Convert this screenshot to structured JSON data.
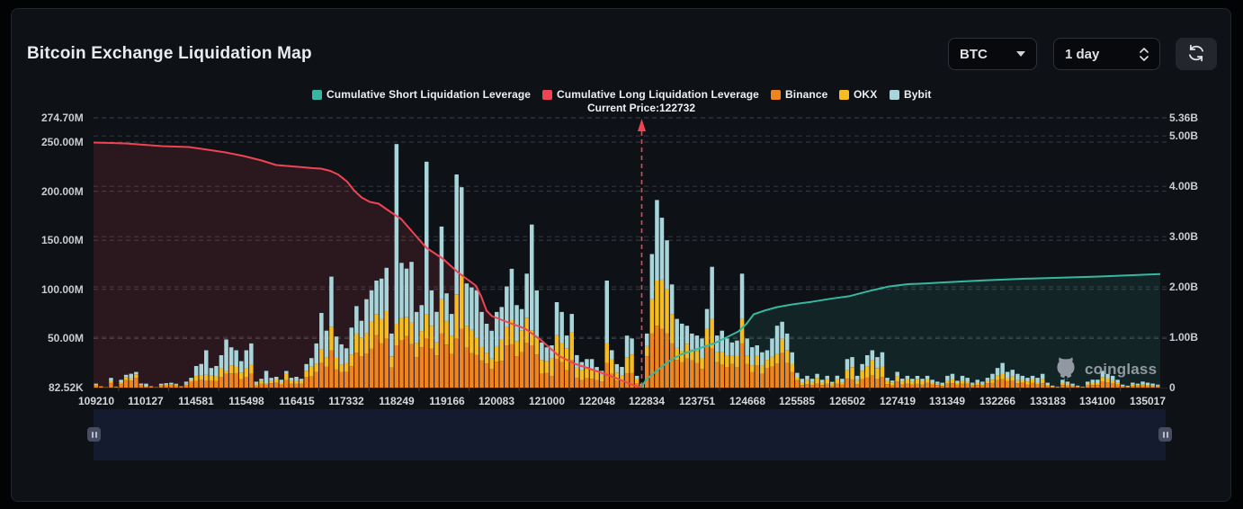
{
  "page": {
    "title": "Bitcoin Exchange Liquidation Map"
  },
  "controls": {
    "symbol_select": {
      "value": "BTC"
    },
    "interval_select": {
      "value": "1 day"
    },
    "refresh_button": "refresh"
  },
  "legend": {
    "items": [
      {
        "label": "Cumulative Short Liquidation Leverage",
        "color": "#35b8a0",
        "type": "line"
      },
      {
        "label": "Cumulative Long Liquidation Leverage",
        "color": "#ef4454",
        "type": "line"
      },
      {
        "label": "Binance",
        "color": "#f0841f",
        "type": "bar"
      },
      {
        "label": "OKX",
        "color": "#f5bd22",
        "type": "bar"
      },
      {
        "label": "Bybit",
        "color": "#a8d5da",
        "type": "bar"
      }
    ]
  },
  "current_price": {
    "label": "Current Price:122732",
    "value": 122732,
    "x_frac": 0.5139,
    "line_color": "#ef4454"
  },
  "watermark": {
    "text": "coinglass"
  },
  "chart_data": {
    "type": "bar",
    "note": "stacked liquidation bars (left axis, M USD) + cumulative leverage lines (right axis, B USD)",
    "x_tick_labels": [
      "109210",
      "110127",
      "114581",
      "115498",
      "116415",
      "117332",
      "118249",
      "119166",
      "120083",
      "121000",
      "122048",
      "122834",
      "123751",
      "124668",
      "125585",
      "126502",
      "127419",
      "131349",
      "132266",
      "133183",
      "134100",
      "135017"
    ],
    "bars_per_tick": 10,
    "bar_count": 213,
    "series": [
      {
        "name": "Binance",
        "color": "#f0841f",
        "values": [
          2.2,
          0.9,
          0.3,
          5.0,
          0.5,
          4.1,
          7.6,
          7.3,
          10.0,
          2.5,
          0.6,
          1.0,
          0.3,
          1.9,
          2.3,
          2.4,
          2.3,
          0.8,
          2.8,
          5.9,
          6.8,
          7.8,
          7,
          7.3,
          6.6,
          11.0,
          14,
          14.6,
          14.7,
          8.6,
          11.0,
          14,
          2.0,
          3.9,
          3,
          4.5,
          4.7,
          3.3,
          7.6,
          4.0,
          3.7,
          3.8,
          10.7,
          11.5,
          15.7,
          25,
          21.4,
          38,
          18.4,
          16.0,
          16.1,
          21.8,
          35.5,
          31.8,
          34.8,
          39.5,
          53.3,
          45,
          50,
          20.4,
          43,
          48.2,
          52.5,
          44.2,
          30.8,
          41.0,
          50,
          39.8,
          32.8,
          55,
          43.9,
          34.0,
          50,
          60,
          40.8,
          35.0,
          33.4,
          27.6,
          24.5,
          19.0,
          26.4,
          27.2,
          42.9,
          44.1,
          32.0,
          36.0,
          45.8,
          43,
          33.7,
          14.3,
          15.1,
          11.8,
          29.0,
          25.8,
          17.7,
          28.0,
          10.0,
          7.6,
          9.7,
          9.0,
          7.7,
          6.3,
          25,
          14.0,
          7.1,
          6.6,
          14.5,
          15.1,
          4.6,
          1.5,
          32.0,
          55,
          63,
          60,
          55,
          45,
          28.3,
          26.1,
          29.6,
          27.8,
          25.2,
          19.1,
          41.3,
          40,
          26.0,
          23.1,
          21.1,
          24.2,
          20.8,
          45,
          24.3,
          16.0,
          22.2,
          14.1,
          20.1,
          21.3,
          24.6,
          35.3,
          25.0,
          15.8,
          7.5,
          2.7,
          3.6,
          2.7,
          4.0,
          2.5,
          4.1,
          1.9,
          4.0,
          3.0,
          9.4,
          8.4,
          3.5,
          8.6,
          10.2,
          12.8,
          8.8,
          10.8,
          3.6,
          2.4,
          6.1,
          3.1,
          4.0,
          2.9,
          3.9,
          3.2,
          4.6,
          3.1,
          2.6,
          1.6,
          3.9,
          4.5,
          2.9,
          4.0,
          4.0,
          2.2,
          2.7,
          2.2,
          4.5,
          4.7,
          7.6,
          8.5,
          6.6,
          7.0,
          4.4,
          4.8,
          3.2,
          5.0,
          3.3,
          4.4,
          1.7,
          0.7,
          0.4,
          2.7,
          2.3,
          1.3,
          0.8,
          0.3,
          2.4,
          2.6,
          2.6,
          6.4,
          5.4,
          4.2,
          3.1,
          1.0,
          0.6,
          1.8,
          1.7,
          2.3,
          1.8,
          1.4,
          1.2
        ]
      },
      {
        "name": "OKX",
        "color": "#f5bd22",
        "values": [
          0.6,
          0.2,
          0.1,
          1.8,
          0.2,
          1.1,
          2.7,
          2.2,
          3.5,
          0.7,
          0.4,
          0.2,
          0.1,
          0.6,
          1.0,
          1.0,
          0.7,
          0.2,
          1.0,
          1.9,
          5.0,
          4.8,
          6,
          4.8,
          5.0,
          8.6,
          3,
          8.1,
          6.8,
          6.7,
          8.3,
          9,
          2.0,
          2.8,
          1,
          2.7,
          3.5,
          2.3,
          6.2,
          3.2,
          3.6,
          3.4,
          6.4,
          9.8,
          8.8,
          14,
          9.4,
          24,
          11.8,
          7.7,
          9.5,
          11.9,
          19.8,
          19.3,
          20.7,
          28.3,
          21.6,
          25,
          28,
          11.4,
          22,
          22.7,
          19.2,
          22.1,
          14.3,
          16.6,
          25,
          23.1,
          13.2,
          35,
          24.1,
          19.0,
          45,
          55,
          22.1,
          23.9,
          17.1,
          14.1,
          11.1,
          10.5,
          15.8,
          21.4,
          18.7,
          24.6,
          15.0,
          21.9,
          25.3,
          15,
          17.4,
          13.8,
          11.6,
          17.9,
          24.4,
          20.0,
          22.3,
          28.0,
          10.5,
          10.0,
          11.2,
          8.5,
          8.9,
          6.7,
          20,
          14.5,
          8.2,
          5.5,
          16.0,
          18.6,
          4.0,
          1.7,
          10.3,
          35,
          46,
          50,
          45,
          30,
          12.1,
          11.1,
          15.1,
          10.9,
          12.2,
          10.8,
          18.3,
          30,
          10.5,
          13.3,
          11.5,
          8.7,
          11.7,
          25,
          8.4,
          6.8,
          9.9,
          8.4,
          8.2,
          10.2,
          9.5,
          14.4,
          13.4,
          8.5,
          2.6,
          2.8,
          4.4,
          3.0,
          5.9,
          2.7,
          5.0,
          2.5,
          4.3,
          2.4,
          8.5,
          12.5,
          4.1,
          8.6,
          11.7,
          15.2,
          11.2,
          11.2,
          3.5,
          2.8,
          5.4,
          3.2,
          4.6,
          3.2,
          5.1,
          3.7,
          3.7,
          2.4,
          1.2,
          1.2,
          2.6,
          3.8,
          2.1,
          3.3,
          2.1,
          1.5,
          2.5,
          1.5,
          2.9,
          3.4,
          4.6,
          5.7,
          3.0,
          4.4,
          3.2,
          3.0,
          3.1,
          3.7,
          2.2,
          4.0,
          1.0,
          0.6,
          0.2,
          2.4,
          1.7,
          0.8,
          0.5,
          0.3,
          1.7,
          2.4,
          2.4,
          3.9,
          4.2,
          2.4,
          1.7,
          0.6,
          0.4,
          1.1,
          0.9,
          1.3,
          0.9,
          0.8,
          0.8
        ]
      },
      {
        "name": "Bybit",
        "color": "#a8d5da",
        "values": [
          1.2,
          0.3,
          0.1,
          3.1,
          0.3,
          2.8,
          2.7,
          4.6,
          2.4,
          0.9,
          3.0,
          0.3,
          0.1,
          1.4,
          1.2,
          1.5,
          0.9,
          0.4,
          2.2,
          2.2,
          10.2,
          11.5,
          25,
          7.9,
          10.4,
          13.4,
          32,
          18.3,
          16.5,
          11.6,
          18.7,
          22,
          2.0,
          2.3,
          13,
          2.7,
          2.8,
          2.4,
          3.1,
          2.8,
          3.7,
          1.8,
          6.9,
          8.7,
          20.5,
          37,
          27.2,
          51,
          21.8,
          20.3,
          14.4,
          27.4,
          27.7,
          16.9,
          34.5,
          31.2,
          34.1,
          41,
          44,
          23.2,
          183,
          56.1,
          49.4,
          61.7,
          31.9,
          26.4,
          155,
          36.1,
          31.1,
          74,
          28.0,
          22.0,
          122,
          89,
          43.1,
          43.1,
          48.6,
          35.3,
          29.4,
          28.4,
          34.8,
          33.4,
          41.4,
          52.3,
          37.0,
          22.0,
          44.9,
          108,
          47.9,
          17.9,
          14.3,
          13.3,
          33.6,
          31.2,
          13.0,
          19.0,
          12.6,
          8.4,
          8.1,
          11.5,
          4.4,
          4.0,
          64,
          9.6,
          8.6,
          9.0,
          22.4,
          16.3,
          3.4,
          0.8,
          12.7,
          46,
          82,
          63,
          50,
          30,
          29.6,
          27.9,
          18.3,
          16.3,
          15.6,
          20.1,
          20.4,
          53,
          16.5,
          21.6,
          17.4,
          13.1,
          15.4,
          46,
          17.3,
          18.3,
          10.9,
          13.5,
          9.7,
          18.5,
          28.9,
          17.3,
          16.6,
          11.6,
          4.9,
          3.5,
          4.0,
          3.3,
          4.1,
          2.8,
          2.9,
          1.5,
          3.8,
          3.6,
          11.1,
          10.1,
          4.4,
          6.8,
          11.1,
          10.0,
          11.0,
          14.0,
          2.9,
          1.9,
          4.5,
          2.8,
          3.4,
          2.9,
          2.9,
          2.1,
          3.7,
          2.5,
          2.2,
          2.1,
          5.5,
          5.7,
          2.0,
          4.7,
          3.9,
          1.3,
          2.8,
          2.3,
          2.6,
          5.9,
          7.8,
          10.9,
          6.4,
          6.7,
          6.4,
          4.2,
          3.7,
          3.3,
          4.5,
          5.6,
          2.2,
          0.7,
          0.4,
          2.9,
          2.0,
          1.9,
          0.7,
          0.4,
          1.9,
          3.1,
          3.1,
          6.7,
          4.3,
          5.4,
          3.2,
          1.4,
          0.9,
          2.1,
          1.4,
          2.5,
          2.3,
          1.9,
          1.0
        ]
      }
    ],
    "lines": [
      {
        "name": "Cumulative Long Liquidation Leverage",
        "color": "#ef4454",
        "fill": "rgba(239,68,84,0.13)",
        "axis": "right",
        "points": [
          [
            0.0,
            4.869
          ],
          [
            0.0304,
            4.851
          ],
          [
            0.0641,
            4.797
          ],
          [
            0.0894,
            4.779
          ],
          [
            0.1071,
            4.726
          ],
          [
            0.1239,
            4.672
          ],
          [
            0.1408,
            4.601
          ],
          [
            0.1577,
            4.511
          ],
          [
            0.1712,
            4.422
          ],
          [
            0.1914,
            4.386
          ],
          [
            0.2057,
            4.359
          ],
          [
            0.2133,
            4.351
          ],
          [
            0.2218,
            4.306
          ],
          [
            0.2293,
            4.234
          ],
          [
            0.2378,
            4.091
          ],
          [
            0.2445,
            3.911
          ],
          [
            0.2513,
            3.779
          ],
          [
            0.2589,
            3.689
          ],
          [
            0.2673,
            3.654
          ],
          [
            0.2782,
            3.493
          ],
          [
            0.2884,
            3.35
          ],
          [
            0.3002,
            3.064
          ],
          [
            0.312,
            2.778
          ],
          [
            0.3272,
            2.564
          ],
          [
            0.3423,
            2.278
          ],
          [
            0.3583,
            2.028
          ],
          [
            0.3634,
            1.813
          ],
          [
            0.3685,
            1.528
          ],
          [
            0.3735,
            1.42
          ],
          [
            0.3887,
            1.295
          ],
          [
            0.4047,
            1.17
          ],
          [
            0.4199,
            0.938
          ],
          [
            0.4283,
            0.777
          ],
          [
            0.4359,
            0.634
          ],
          [
            0.4511,
            0.473
          ],
          [
            0.4688,
            0.348
          ],
          [
            0.4857,
            0.223
          ],
          [
            0.4983,
            0.116
          ],
          [
            0.5067,
            0.045
          ],
          [
            0.5135,
            0.0
          ]
        ]
      },
      {
        "name": "Cumulative Short Liquidation Leverage",
        "color": "#35b8a0",
        "fill": "rgba(53,184,160,0.12)",
        "axis": "right",
        "points": [
          [
            0.5135,
            0.0
          ],
          [
            0.5181,
            0.161
          ],
          [
            0.5287,
            0.348
          ],
          [
            0.5396,
            0.527
          ],
          [
            0.5506,
            0.657
          ],
          [
            0.5616,
            0.734
          ],
          [
            0.5725,
            0.813
          ],
          [
            0.5826,
            0.884
          ],
          [
            0.5936,
            1.001
          ],
          [
            0.6046,
            1.117
          ],
          [
            0.6121,
            1.269
          ],
          [
            0.6189,
            1.456
          ],
          [
            0.6298,
            1.535
          ],
          [
            0.6408,
            1.599
          ],
          [
            0.6551,
            1.653
          ],
          [
            0.6728,
            1.703
          ],
          [
            0.691,
            1.765
          ],
          [
            0.7091,
            1.819
          ],
          [
            0.7268,
            1.917
          ],
          [
            0.7454,
            2.008
          ],
          [
            0.7631,
            2.055
          ],
          [
            0.7808,
            2.071
          ],
          [
            0.7993,
            2.092
          ],
          [
            0.8347,
            2.131
          ],
          [
            0.871,
            2.162
          ],
          [
            0.9073,
            2.185
          ],
          [
            0.9427,
            2.207
          ],
          [
            0.9789,
            2.239
          ],
          [
            1.0,
            2.257
          ]
        ]
      }
    ],
    "left_axis": {
      "max_label": "274.70M",
      "max_value": 274.7,
      "unit": "M",
      "gridline_labels": [
        "250.00M",
        "200.00M",
        "150.00M",
        "100.00M",
        "50.00M"
      ],
      "gridline_values": [
        250,
        200,
        150,
        100,
        50
      ],
      "min_label": "82.52K"
    },
    "right_axis": {
      "max_label": "5.36B",
      "max_value": 5.36,
      "unit": "B",
      "gridline_labels": [
        "5.00B",
        "4.00B",
        "3.00B",
        "2.00B",
        "1.00B"
      ],
      "gridline_values": [
        5,
        4,
        3,
        2,
        1
      ],
      "min_label": "0"
    },
    "grid": true,
    "legend_position": "top"
  },
  "scrollbar": {
    "left_handle": "pause-handle",
    "right_handle": "pause-handle"
  }
}
